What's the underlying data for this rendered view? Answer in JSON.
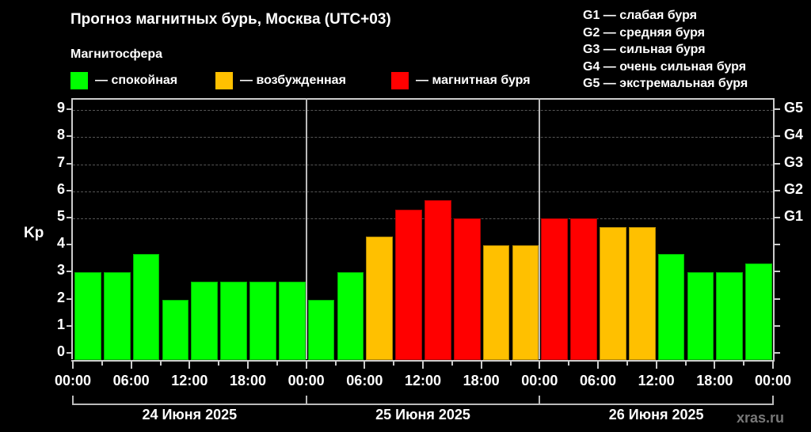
{
  "header": {
    "title": "Прогноз магнитных бурь, Москва (UTC+03)",
    "subtitle": "Магнитосфера",
    "legend": [
      {
        "label": "— спокойная",
        "color": "#00ff00"
      },
      {
        "label": "— возбужденная",
        "color": "#ffc000"
      },
      {
        "label": "— магнитная буря",
        "color": "#ff0000"
      }
    ],
    "g_legend": [
      "G1 — слабая буря",
      "G2 — средняя буря",
      "G3 — сильная буря",
      "G4 — очень сильная буря",
      "G5 — экстремальная буря"
    ]
  },
  "watermark": "xras.ru",
  "chart_data": {
    "type": "bar",
    "title": "Прогноз магнитных бурь, Москва (UTC+03)",
    "ylabel": "Kp",
    "xlabel": "",
    "ylim": [
      0,
      9
    ],
    "yticks": [
      "0",
      "1",
      "2",
      "3",
      "4",
      "5",
      "6",
      "7",
      "8",
      "9"
    ],
    "right_ticks": [
      {
        "label": "G1",
        "value": 5
      },
      {
        "label": "G2",
        "value": 6
      },
      {
        "label": "G3",
        "value": 7
      },
      {
        "label": "G4",
        "value": 8
      },
      {
        "label": "G5",
        "value": 9
      }
    ],
    "x_tick_labels": [
      "00:00",
      "06:00",
      "12:00",
      "18:00",
      "00:00",
      "06:00",
      "12:00",
      "18:00",
      "00:00",
      "06:00",
      "12:00",
      "18:00",
      "00:00"
    ],
    "days": [
      "24 Июня 2025",
      "25 Июня 2025",
      "26 Июня 2025"
    ],
    "interval_hours": 3,
    "categories": [
      "24 00-03",
      "24 03-06",
      "24 06-09",
      "24 09-12",
      "24 12-15",
      "24 15-18",
      "24 18-21",
      "24 21-24",
      "25 00-03",
      "25 03-06",
      "25 06-09",
      "25 09-12",
      "25 12-15",
      "25 15-18",
      "25 18-21",
      "25 21-24",
      "26 00-03",
      "26 03-06",
      "26 06-09",
      "26 09-12",
      "26 12-15",
      "26 15-18",
      "26 18-21",
      "26 21-24"
    ],
    "values": [
      3,
      3,
      3.67,
      2,
      2.67,
      2.67,
      2.67,
      2.67,
      2,
      3,
      4.33,
      5.33,
      5.67,
      5,
      4,
      4,
      5,
      5,
      4.67,
      4.67,
      3.67,
      3,
      3,
      3.33
    ],
    "levels": [
      "calm",
      "calm",
      "calm",
      "calm",
      "calm",
      "calm",
      "calm",
      "calm",
      "calm",
      "calm",
      "active",
      "storm",
      "storm",
      "storm",
      "active",
      "active",
      "storm",
      "storm",
      "active",
      "active",
      "calm",
      "calm",
      "calm",
      "calm"
    ],
    "level_colors": {
      "calm": "#00ff00",
      "active": "#ffc000",
      "storm": "#ff0000"
    },
    "grid": true,
    "legend_position": "top"
  }
}
